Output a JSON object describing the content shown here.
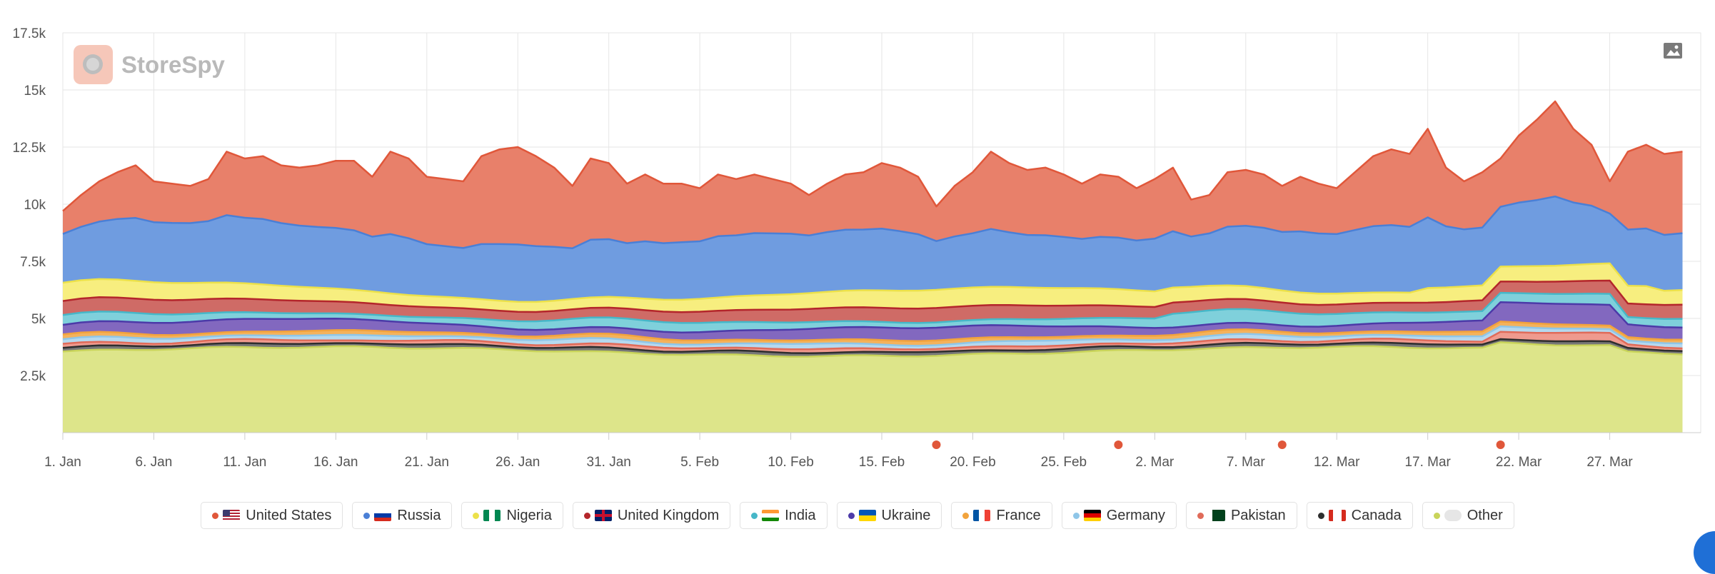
{
  "app": {
    "brand_name": "StoreSpy"
  },
  "toolbar": {
    "export_icon": "image-icon"
  },
  "chart_data": {
    "type": "area",
    "stacked": true,
    "x_start": "2024-01-01",
    "x_end": "2024-03-31",
    "x_tick_labels": [
      "1. Jan",
      "6. Jan",
      "11. Jan",
      "16. Jan",
      "21. Jan",
      "26. Jan",
      "31. Jan",
      "5. Feb",
      "10. Feb",
      "15. Feb",
      "20. Feb",
      "25. Feb",
      "2. Mar",
      "7. Mar",
      "12. Mar",
      "17. Mar",
      "22. Mar",
      "27. Mar"
    ],
    "y_tick_labels": [
      "2.5k",
      "5k",
      "7.5k",
      "10k",
      "12.5k",
      "15k",
      "17.5k"
    ],
    "ylim": [
      0,
      17500
    ],
    "grid": true,
    "legend_position": "bottom",
    "event_markers": [
      "2024-02-18",
      "2024-02-28",
      "2024-03-08",
      "2024-03-20"
    ],
    "total_series": [
      9700,
      10400,
      11000,
      11400,
      11700,
      11000,
      10900,
      10800,
      11100,
      12300,
      12000,
      12100,
      11700,
      11600,
      11700,
      11900,
      11900,
      11200,
      12300,
      12000,
      11200,
      11100,
      11000,
      12100,
      12400,
      12500,
      12100,
      11600,
      10800,
      12000,
      11800,
      10900,
      11300,
      10900,
      10900,
      10700,
      11300,
      11100,
      11300,
      11100,
      10900,
      10400,
      10900,
      11300,
      11400,
      11800,
      11600,
      11200,
      9900,
      10800,
      11400,
      12300,
      11800,
      11500,
      11600,
      11300,
      10900,
      11300,
      11200,
      10700,
      11100,
      11600,
      10200,
      10400,
      11400,
      11500,
      11300,
      10800,
      11200,
      10900,
      10700,
      11400,
      12100,
      12400,
      12200,
      13300,
      11600,
      11000,
      11400,
      12000,
      13000,
      13700,
      14500,
      13300,
      12600,
      11000,
      12300,
      12600,
      12200,
      12300
    ],
    "series": [
      {
        "name": "United States",
        "color": "#e8806a",
        "line": "#e0573a",
        "flag": "us"
      },
      {
        "name": "Russia",
        "color": "#6f9ce0",
        "line": "#4a7fd6",
        "flag": "ru"
      },
      {
        "name": "Nigeria",
        "color": "#f7ee7f",
        "line": "#ece14a",
        "flag": "ng"
      },
      {
        "name": "United Kingdom",
        "color": "#cf6b66",
        "line": "#b4262b",
        "flag": "gb"
      },
      {
        "name": "India",
        "color": "#7fd0db",
        "line": "#46b7c8",
        "flag": "in"
      },
      {
        "name": "Ukraine",
        "color": "#8268bf",
        "line": "#4c3aa8",
        "flag": "ua"
      },
      {
        "name": "France",
        "color": "#f4b25c",
        "line": "#f2a33c",
        "flag": "fr"
      },
      {
        "name": "Germany",
        "color": "#b5d9ef",
        "line": "#8fc6e8",
        "flag": "de"
      },
      {
        "name": "Pakistan",
        "color": "#ef9a8e",
        "line": "#e06b59",
        "flag": "pk"
      },
      {
        "name": "Canada",
        "color": "#777777",
        "line": "#2e2e2e",
        "flag": "ca"
      },
      {
        "name": "Other",
        "color": "#dde58a",
        "line": "#c9d45a",
        "flag": "none"
      }
    ]
  }
}
